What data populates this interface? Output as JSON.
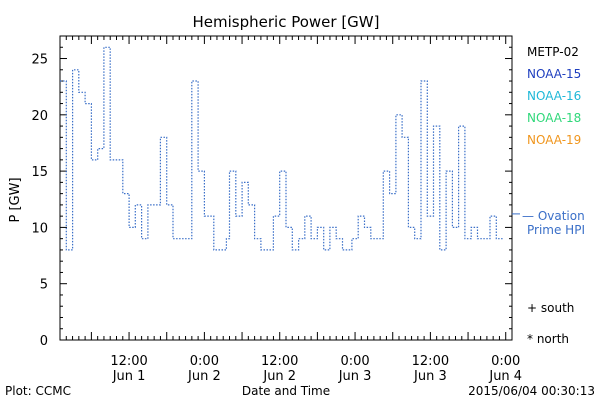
{
  "chart_data": {
    "type": "line",
    "title": "Hemispheric Power [GW]",
    "ylabel": "P [GW]",
    "xlabel": "Date and Time",
    "ylim": [
      0,
      27
    ],
    "yticks": [
      0,
      5,
      10,
      15,
      20,
      25
    ],
    "xlim": [
      "2015-06-01 01:00",
      "2015-06-04 01:00"
    ],
    "xticks": [
      {
        "time": "2015-06-01 12:00",
        "label1": "12:00",
        "label2": "Jun 1"
      },
      {
        "time": "2015-06-02 00:00",
        "label1": "0:00",
        "label2": "Jun 2"
      },
      {
        "time": "2015-06-02 12:00",
        "label1": "12:00",
        "label2": "Jun 2"
      },
      {
        "time": "2015-06-03 00:00",
        "label1": "0:00",
        "label2": "Jun 3"
      },
      {
        "time": "2015-06-03 12:00",
        "label1": "12:00",
        "label2": "Jun 3"
      },
      {
        "time": "2015-06-04 00:00",
        "label1": "0:00",
        "label2": "Jun 4"
      }
    ],
    "legend": {
      "placement": "right",
      "entries": [
        {
          "label": "METP-02",
          "color": "#000000"
        },
        {
          "label": "NOAA-15",
          "color": "#1f3fbf"
        },
        {
          "label": "NOAA-16",
          "color": "#1fb8d8"
        },
        {
          "label": "NOAA-18",
          "color": "#2fd87a"
        },
        {
          "label": "NOAA-19",
          "color": "#f0961e"
        }
      ]
    },
    "annotation": {
      "line1": "— Ovation",
      "line2": "Prime HPI",
      "color": "#3a6fc8",
      "value": 11.2
    },
    "markers": {
      "south": "+ south",
      "north": "* north"
    },
    "series": [
      {
        "color": "#3a6fc8",
        "start": "2015-06-01 01:00",
        "step_minutes": 30,
        "values": [
          23,
          23,
          8,
          8,
          24,
          24,
          22,
          22,
          21,
          21,
          16,
          16,
          17,
          17,
          26,
          26,
          16,
          16,
          16,
          16,
          13,
          13,
          10,
          10,
          12,
          12,
          9,
          9,
          12,
          12,
          12,
          12,
          18,
          18,
          12,
          12,
          9,
          9,
          9,
          9,
          9,
          9,
          23,
          23,
          15,
          15,
          11,
          11,
          11,
          8,
          8,
          8,
          8,
          9,
          15,
          15,
          11,
          11,
          14,
          14,
          12,
          12,
          9,
          9,
          8,
          8,
          8,
          8,
          11,
          11,
          15,
          15,
          10,
          10,
          8,
          8,
          9,
          9,
          11,
          11,
          9,
          9,
          10,
          10,
          8,
          8,
          10,
          10,
          9,
          9,
          8,
          8,
          8,
          9,
          9,
          11,
          11,
          10,
          10,
          9,
          9,
          9,
          9,
          15,
          15,
          13,
          13,
          20,
          20,
          18,
          18,
          10,
          10,
          9,
          9,
          23,
          23,
          11,
          11,
          19,
          19,
          8,
          8,
          15,
          15,
          10,
          10,
          19,
          19,
          9,
          9,
          10,
          10,
          9,
          9,
          9,
          9,
          11,
          11,
          9,
          9
        ]
      }
    ]
  },
  "footer": {
    "left": "Plot: CCMC",
    "center": "Date and Time",
    "right": "2015/06/04 00:30:13"
  }
}
